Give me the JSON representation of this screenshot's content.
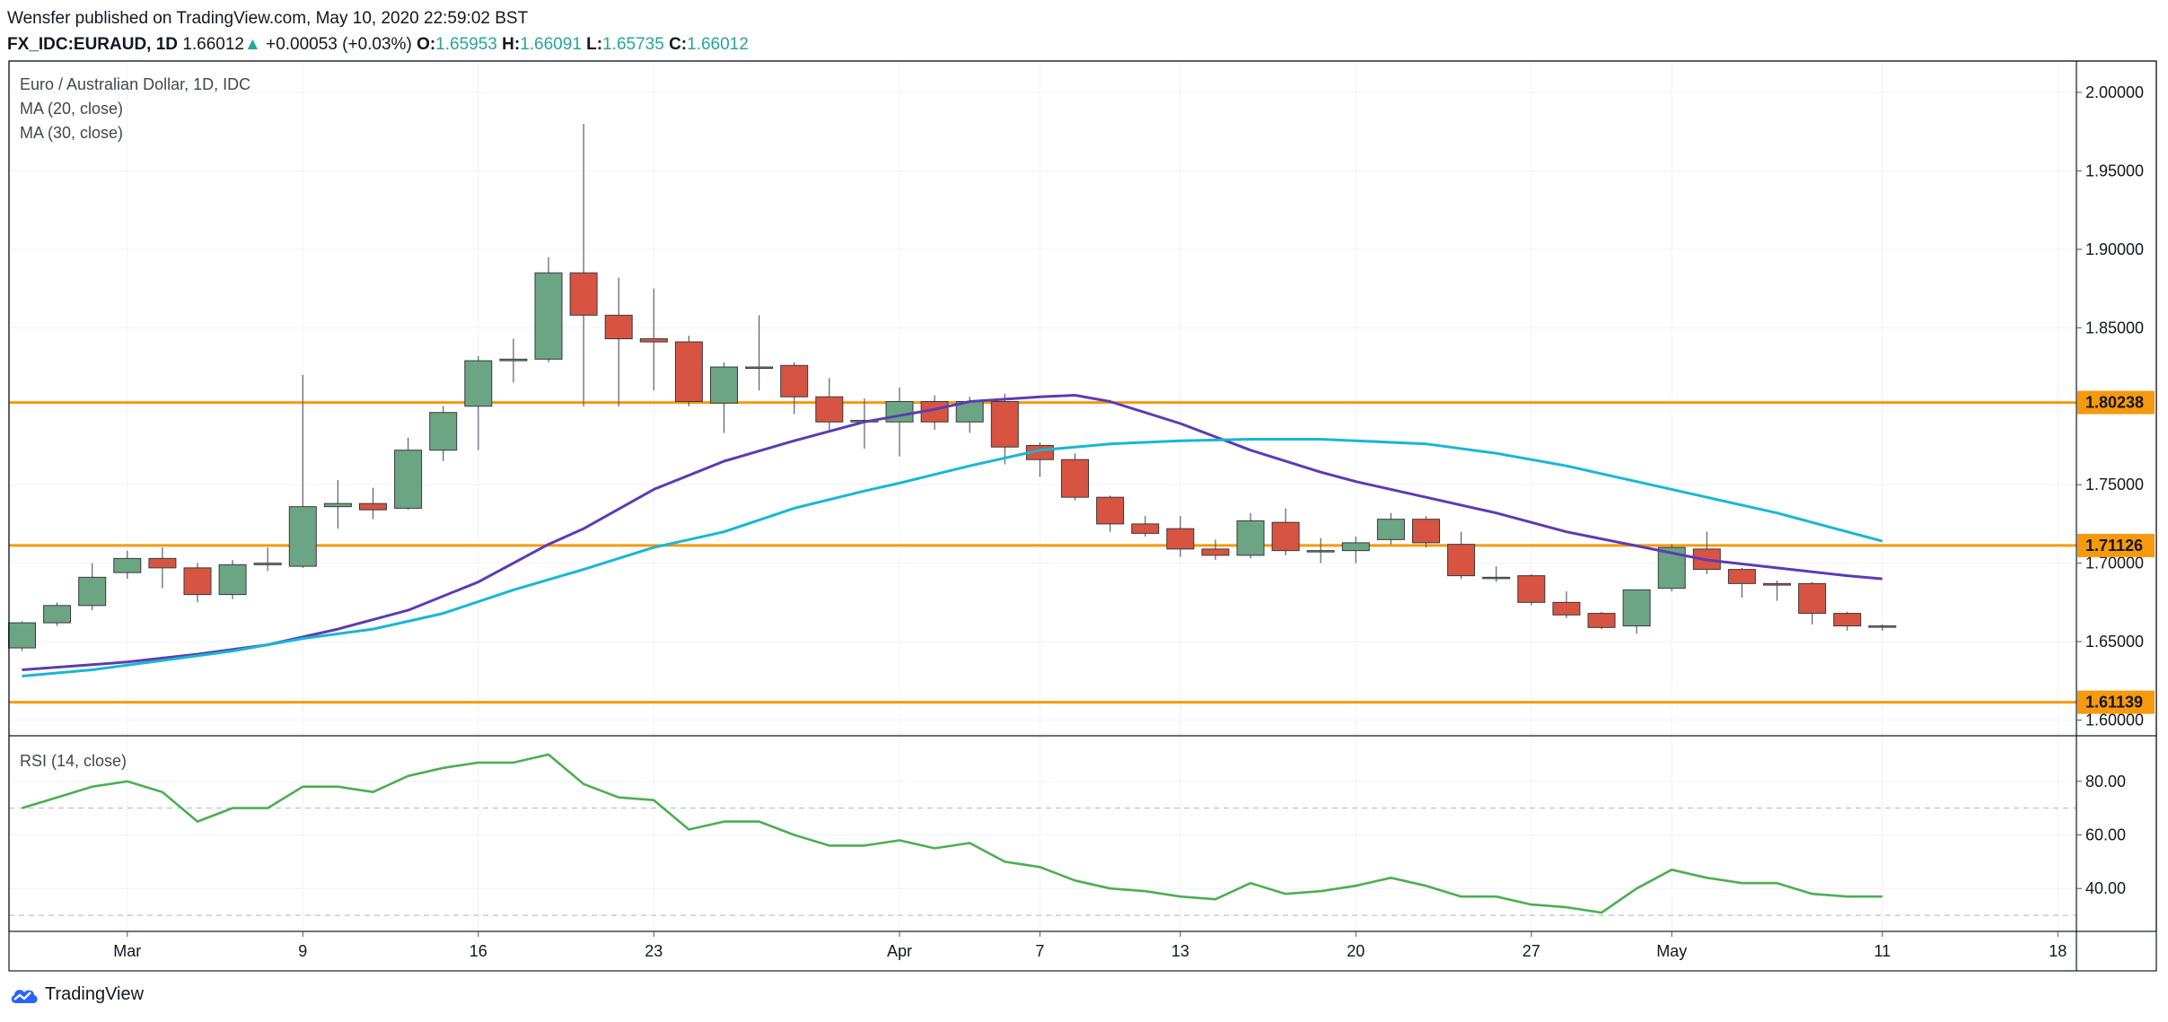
{
  "header": {
    "published_line": "Wensfer published on TradingView.com, May 10, 2020 22:59:02 BST",
    "symbol": "FX_IDC:EURAUD, 1D",
    "last": "1.66012",
    "change_arrow": "▲",
    "change": "+0.00053 (+0.03%)",
    "o_label": "O:",
    "o_value": "1.65953",
    "h_label": "H:",
    "h_value": "1.66091",
    "l_label": "L:",
    "l_value": "1.65735",
    "c_label": "C:",
    "c_value": "1.66012"
  },
  "legend": {
    "title": "Euro / Australian Dollar, 1D, IDC",
    "ma20": "MA (20, close)",
    "ma30": "MA (30, close)",
    "rsi": "RSI (14, close)"
  },
  "footer": {
    "brand": "TradingView",
    "logo_icon": "tradingview-cloud-icon"
  },
  "colors": {
    "up": "#6ba583",
    "down": "#d75442",
    "wick": "#5d606b",
    "ma20": "#5b3cb3",
    "ma30": "#17b8d4",
    "rsi": "#4caf50",
    "level": "#f59a0e",
    "grid": "#f0f3fa"
  },
  "chart_data": [
    {
      "type": "candlestick",
      "title": "Euro / Australian Dollar, 1D, IDC",
      "x_ticks": [
        {
          "bar": 3,
          "label": "Mar"
        },
        {
          "bar": 8,
          "label": "9"
        },
        {
          "bar": 13,
          "label": "16"
        },
        {
          "bar": 18,
          "label": "23"
        },
        {
          "bar": 25,
          "label": "Apr"
        },
        {
          "bar": 29,
          "label": "7"
        },
        {
          "bar": 33,
          "label": "13"
        },
        {
          "bar": 38,
          "label": "20"
        },
        {
          "bar": 43,
          "label": "27"
        },
        {
          "bar": 47,
          "label": "May"
        },
        {
          "bar": 53,
          "label": "11"
        },
        {
          "bar": 58,
          "label": "18"
        }
      ],
      "y_ticks": [
        "1.60000",
        "1.65000",
        "1.70000",
        "1.75000",
        "1.80000",
        "1.85000",
        "1.90000",
        "1.95000",
        "2.00000"
      ],
      "ylim": [
        1.59,
        2.02
      ],
      "candles": [
        {
          "o": 1.646,
          "h": 1.663,
          "l": 1.644,
          "c": 1.662
        },
        {
          "o": 1.662,
          "h": 1.675,
          "l": 1.66,
          "c": 1.673
        },
        {
          "o": 1.673,
          "h": 1.7,
          "l": 1.67,
          "c": 1.691
        },
        {
          "o": 1.694,
          "h": 1.708,
          "l": 1.69,
          "c": 1.703
        },
        {
          "o": 1.703,
          "h": 1.71,
          "l": 1.684,
          "c": 1.697
        },
        {
          "o": 1.697,
          "h": 1.7,
          "l": 1.675,
          "c": 1.68
        },
        {
          "o": 1.68,
          "h": 1.702,
          "l": 1.677,
          "c": 1.699
        },
        {
          "o": 1.699,
          "h": 1.71,
          "l": 1.695,
          "c": 1.7
        },
        {
          "o": 1.698,
          "h": 1.82,
          "l": 1.697,
          "c": 1.736
        },
        {
          "o": 1.736,
          "h": 1.753,
          "l": 1.722,
          "c": 1.738
        },
        {
          "o": 1.738,
          "h": 1.748,
          "l": 1.728,
          "c": 1.734
        },
        {
          "o": 1.735,
          "h": 1.78,
          "l": 1.734,
          "c": 1.772
        },
        {
          "o": 1.772,
          "h": 1.8,
          "l": 1.765,
          "c": 1.796
        },
        {
          "o": 1.8,
          "h": 1.832,
          "l": 1.772,
          "c": 1.829
        },
        {
          "o": 1.829,
          "h": 1.843,
          "l": 1.815,
          "c": 1.83
        },
        {
          "o": 1.83,
          "h": 1.895,
          "l": 1.828,
          "c": 1.885
        },
        {
          "o": 1.885,
          "h": 1.98,
          "l": 1.8,
          "c": 1.858
        },
        {
          "o": 1.858,
          "h": 1.882,
          "l": 1.8,
          "c": 1.843
        },
        {
          "o": 1.843,
          "h": 1.875,
          "l": 1.81,
          "c": 1.841
        },
        {
          "o": 1.841,
          "h": 1.845,
          "l": 1.8,
          "c": 1.803
        },
        {
          "o": 1.802,
          "h": 1.828,
          "l": 1.783,
          "c": 1.825
        },
        {
          "o": 1.825,
          "h": 1.858,
          "l": 1.81,
          "c": 1.825
        },
        {
          "o": 1.826,
          "h": 1.828,
          "l": 1.795,
          "c": 1.806
        },
        {
          "o": 1.806,
          "h": 1.818,
          "l": 1.785,
          "c": 1.79
        },
        {
          "o": 1.79,
          "h": 1.805,
          "l": 1.773,
          "c": 1.791
        },
        {
          "o": 1.79,
          "h": 1.812,
          "l": 1.768,
          "c": 1.803
        },
        {
          "o": 1.803,
          "h": 1.807,
          "l": 1.785,
          "c": 1.79
        },
        {
          "o": 1.79,
          "h": 1.806,
          "l": 1.783,
          "c": 1.803
        },
        {
          "o": 1.803,
          "h": 1.808,
          "l": 1.763,
          "c": 1.774
        },
        {
          "o": 1.775,
          "h": 1.777,
          "l": 1.755,
          "c": 1.766
        },
        {
          "o": 1.766,
          "h": 1.77,
          "l": 1.74,
          "c": 1.742
        },
        {
          "o": 1.742,
          "h": 1.743,
          "l": 1.72,
          "c": 1.725
        },
        {
          "o": 1.725,
          "h": 1.73,
          "l": 1.717,
          "c": 1.719
        },
        {
          "o": 1.722,
          "h": 1.73,
          "l": 1.704,
          "c": 1.709
        },
        {
          "o": 1.709,
          "h": 1.715,
          "l": 1.702,
          "c": 1.705
        },
        {
          "o": 1.705,
          "h": 1.732,
          "l": 1.703,
          "c": 1.727
        },
        {
          "o": 1.726,
          "h": 1.735,
          "l": 1.705,
          "c": 1.708
        },
        {
          "o": 1.708,
          "h": 1.716,
          "l": 1.7,
          "c": 1.708
        },
        {
          "o": 1.708,
          "h": 1.717,
          "l": 1.7,
          "c": 1.713
        },
        {
          "o": 1.715,
          "h": 1.732,
          "l": 1.712,
          "c": 1.728
        },
        {
          "o": 1.728,
          "h": 1.73,
          "l": 1.71,
          "c": 1.713
        },
        {
          "o": 1.712,
          "h": 1.72,
          "l": 1.69,
          "c": 1.692
        },
        {
          "o": 1.691,
          "h": 1.698,
          "l": 1.688,
          "c": 1.691
        },
        {
          "o": 1.692,
          "h": 1.693,
          "l": 1.673,
          "c": 1.675
        },
        {
          "o": 1.675,
          "h": 1.682,
          "l": 1.665,
          "c": 1.667
        },
        {
          "o": 1.668,
          "h": 1.669,
          "l": 1.658,
          "c": 1.659
        },
        {
          "o": 1.66,
          "h": 1.683,
          "l": 1.655,
          "c": 1.683
        },
        {
          "o": 1.684,
          "h": 1.712,
          "l": 1.682,
          "c": 1.71
        },
        {
          "o": 1.709,
          "h": 1.72,
          "l": 1.693,
          "c": 1.696
        },
        {
          "o": 1.696,
          "h": 1.697,
          "l": 1.678,
          "c": 1.687
        },
        {
          "o": 1.687,
          "h": 1.689,
          "l": 1.676,
          "c": 1.686
        },
        {
          "o": 1.687,
          "h": 1.688,
          "l": 1.661,
          "c": 1.668
        },
        {
          "o": 1.668,
          "h": 1.669,
          "l": 1.657,
          "c": 1.66
        },
        {
          "o": 1.66,
          "h": 1.661,
          "l": 1.657,
          "c": 1.66
        }
      ],
      "series": [
        {
          "name": "MA (20, close)",
          "key": "ma20",
          "points": [
            [
              0,
              1.632
            ],
            [
              3,
              1.637
            ],
            [
              5,
              1.642
            ],
            [
              7,
              1.648
            ],
            [
              9,
              1.658
            ],
            [
              11,
              1.67
            ],
            [
              13,
              1.688
            ],
            [
              15,
              1.712
            ],
            [
              16,
              1.722
            ],
            [
              18,
              1.747
            ],
            [
              20,
              1.765
            ],
            [
              22,
              1.778
            ],
            [
              24,
              1.79
            ],
            [
              26,
              1.798
            ],
            [
              27,
              1.803
            ],
            [
              29,
              1.806
            ],
            [
              30,
              1.807
            ],
            [
              31,
              1.803
            ],
            [
              33,
              1.789
            ],
            [
              35,
              1.772
            ],
            [
              37,
              1.758
            ],
            [
              38,
              1.752
            ],
            [
              40,
              1.742
            ],
            [
              42,
              1.732
            ],
            [
              44,
              1.72
            ],
            [
              46,
              1.711
            ],
            [
              48,
              1.702
            ],
            [
              50,
              1.697
            ],
            [
              52,
              1.692
            ],
            [
              53,
              1.69
            ]
          ]
        },
        {
          "name": "MA (30, close)",
          "key": "ma30",
          "points": [
            [
              0,
              1.628
            ],
            [
              2,
              1.632
            ],
            [
              4,
              1.638
            ],
            [
              6,
              1.644
            ],
            [
              8,
              1.652
            ],
            [
              10,
              1.658
            ],
            [
              12,
              1.668
            ],
            [
              14,
              1.683
            ],
            [
              16,
              1.696
            ],
            [
              18,
              1.71
            ],
            [
              20,
              1.72
            ],
            [
              22,
              1.735
            ],
            [
              24,
              1.746
            ],
            [
              25,
              1.751
            ],
            [
              27,
              1.762
            ],
            [
              29,
              1.772
            ],
            [
              31,
              1.776
            ],
            [
              33,
              1.778
            ],
            [
              35,
              1.779
            ],
            [
              37,
              1.779
            ],
            [
              38,
              1.778
            ],
            [
              40,
              1.776
            ],
            [
              42,
              1.77
            ],
            [
              44,
              1.762
            ],
            [
              46,
              1.752
            ],
            [
              48,
              1.742
            ],
            [
              50,
              1.732
            ],
            [
              52,
              1.72
            ],
            [
              53,
              1.714
            ]
          ]
        }
      ],
      "levels": [
        "1.80238",
        "1.71126",
        "1.61139"
      ]
    },
    {
      "type": "line",
      "title": "RSI (14, close)",
      "y_ticks": [
        "40.00",
        "60.00",
        "80.00"
      ],
      "ylim": [
        24,
        97
      ],
      "bands": [
        30,
        70
      ],
      "series": [
        {
          "name": "RSI (14, close)",
          "values": [
            70,
            74,
            78,
            80,
            76,
            65,
            70,
            70,
            78,
            78,
            76,
            82,
            85,
            87,
            87,
            90,
            79,
            74,
            73,
            62,
            65,
            65,
            60,
            56,
            56,
            58,
            55,
            57,
            50,
            48,
            43,
            40,
            39,
            37,
            36,
            42,
            38,
            39,
            41,
            44,
            41,
            37,
            37,
            34,
            33,
            31,
            40,
            47,
            44,
            42,
            42,
            38,
            37,
            37
          ]
        }
      ]
    }
  ]
}
